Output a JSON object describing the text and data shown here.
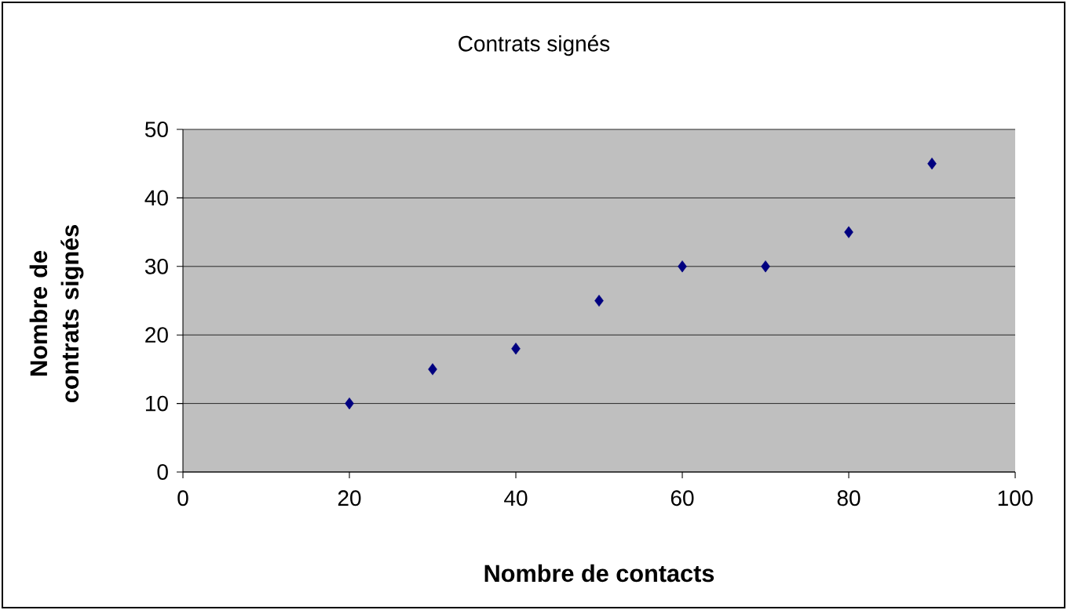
{
  "chart_data": {
    "type": "scatter",
    "title": "Contrats signés",
    "xlabel": "Nombre de contacts",
    "ylabel": "Nombre de contrats signés",
    "x": [
      20,
      30,
      40,
      50,
      60,
      70,
      80,
      90
    ],
    "values": [
      10,
      15,
      18,
      25,
      30,
      30,
      35,
      45
    ],
    "color": "#000080",
    "marker": "diamond",
    "xlim": [
      0,
      100
    ],
    "xticks": [
      0,
      20,
      40,
      60,
      80,
      100
    ],
    "ylim": [
      0,
      50
    ],
    "yticks": [
      0,
      10,
      20,
      30,
      40,
      50
    ],
    "grid": "y"
  }
}
